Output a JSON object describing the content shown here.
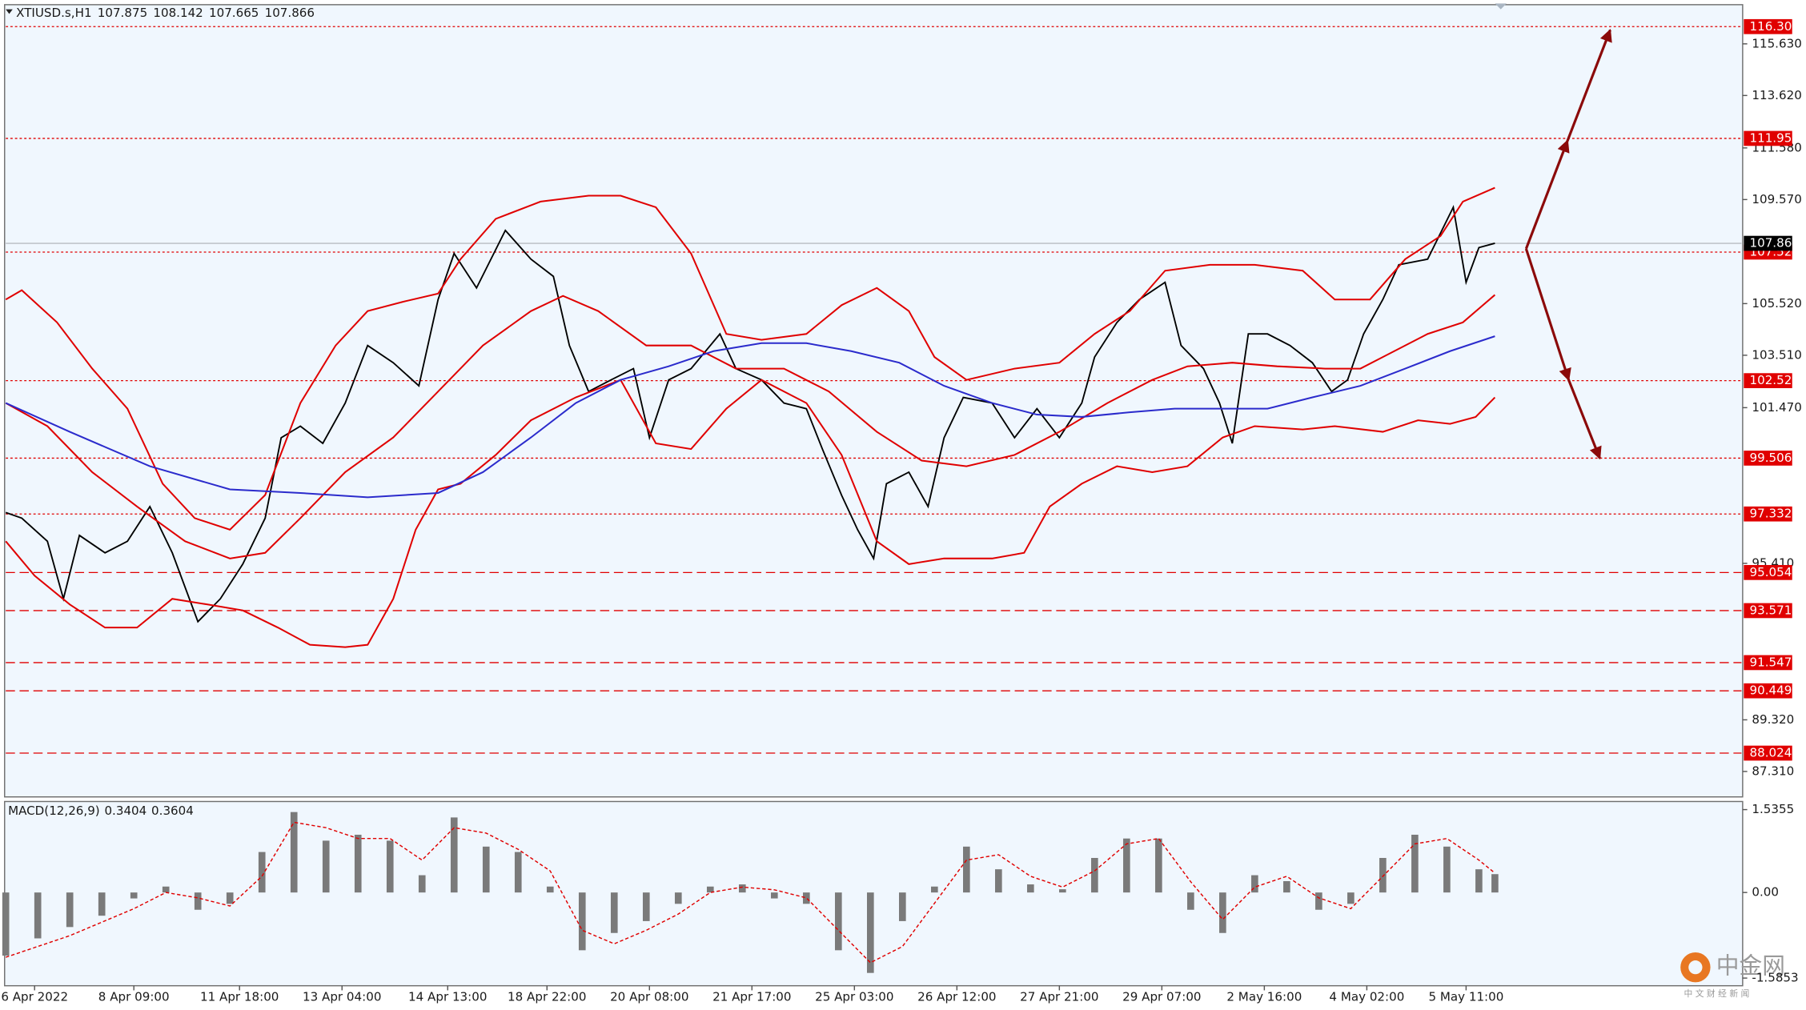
{
  "chart_data": [
    {
      "type": "line",
      "symbol": "XTIUSD.s,H1",
      "ohlc": [
        107.875,
        108.142,
        107.665,
        107.866
      ],
      "xlim": [
        0,
        542
      ],
      "xticks": [
        {
          "value": 9,
          "label": "6 Apr 2022"
        },
        {
          "value": 40,
          "label": "8 Apr 09:00"
        },
        {
          "value": 73,
          "label": "11 Apr 18:00"
        },
        {
          "value": 105,
          "label": "13 Apr 04:00"
        },
        {
          "value": 138,
          "label": "14 Apr 13:00"
        },
        {
          "value": 169,
          "label": "18 Apr 22:00"
        },
        {
          "value": 201,
          "label": "20 Apr 08:00"
        },
        {
          "value": 233,
          "label": "21 Apr 17:00"
        },
        {
          "value": 265,
          "label": "25 Apr 03:00"
        },
        {
          "value": 297,
          "label": "26 Apr 12:00"
        },
        {
          "value": 329,
          "label": "27 Apr 21:00"
        },
        {
          "value": 361,
          "label": "29 Apr 07:00"
        },
        {
          "value": 393,
          "label": "2 May 16:00"
        },
        {
          "value": 425,
          "label": "4 May 02:00"
        },
        {
          "value": 456,
          "label": "5 May 11:00"
        }
      ],
      "ylim": [
        86.32,
        117.11
      ],
      "yticks": [
        {
          "value": 115.63,
          "label": "115.630"
        },
        {
          "value": 113.62,
          "label": "113.620"
        },
        {
          "value": 111.58,
          "label": "111.580"
        },
        {
          "value": 109.57,
          "label": "109.570"
        },
        {
          "value": 105.52,
          "label": "105.520"
        },
        {
          "value": 103.51,
          "label": "103.510"
        },
        {
          "value": 101.47,
          "label": "101.470"
        },
        {
          "value": 95.41,
          "label": "95.410"
        },
        {
          "value": 89.32,
          "label": "89.320"
        },
        {
          "value": 87.31,
          "label": "87.310"
        }
      ],
      "series": [
        {
          "color": "#000000",
          "x": [
            0,
            5,
            13,
            18,
            23,
            31,
            38,
            45,
            52,
            60,
            67,
            74,
            81,
            86,
            92,
            99,
            106,
            113,
            121,
            129,
            135,
            140,
            147,
            156,
            164,
            171,
            176,
            182,
            189,
            196,
            201,
            207,
            214,
            223,
            228,
            236,
            243,
            250,
            255,
            261,
            266,
            271,
            275,
            282,
            288,
            293,
            299,
            308,
            315,
            322,
            329,
            336,
            340,
            347,
            354,
            362,
            367,
            374,
            379,
            383,
            388,
            394,
            401,
            408,
            414,
            419,
            424,
            430,
            435,
            444,
            452,
            456,
            460,
            465
          ],
          "values": [
            97.39,
            97.17,
            96.27,
            94.03,
            96.5,
            95.82,
            96.27,
            97.62,
            95.82,
            93.14,
            94.03,
            95.38,
            97.17,
            100.3,
            100.75,
            100.08,
            101.65,
            103.89,
            103.22,
            102.32,
            105.68,
            107.47,
            106.13,
            108.37,
            107.25,
            106.58,
            103.89,
            102.1,
            102.55,
            102.99,
            100.3,
            102.55,
            102.99,
            104.34,
            102.99,
            102.55,
            101.65,
            101.43,
            99.86,
            98.06,
            96.72,
            95.6,
            98.51,
            98.96,
            97.62,
            100.3,
            101.87,
            101.65,
            100.3,
            101.43,
            100.3,
            101.65,
            103.44,
            104.79,
            105.68,
            106.35,
            103.89,
            102.99,
            101.65,
            100.08,
            104.34,
            104.34,
            103.89,
            103.22,
            102.1,
            102.55,
            104.34,
            105.68,
            107.03,
            107.25,
            109.27,
            106.35,
            107.7,
            107.87
          ]
        },
        {
          "color": "#e00000",
          "x": [
            0,
            5,
            16,
            27,
            38,
            49,
            59,
            70,
            81,
            92,
            103,
            113,
            124,
            135,
            142,
            153,
            167,
            182,
            192,
            203,
            214,
            225,
            236,
            250,
            261,
            272,
            282,
            290,
            300,
            315,
            329,
            340,
            351,
            362,
            376,
            390,
            405,
            415,
            426,
            437,
            448,
            455,
            465
          ],
          "values": [
            105.68,
            106.04,
            104.79,
            102.99,
            101.43,
            98.51,
            97.17,
            96.72,
            98.07,
            101.65,
            103.89,
            105.23,
            105.59,
            105.91,
            107.25,
            108.82,
            109.49,
            109.72,
            109.72,
            109.27,
            107.47,
            104.34,
            104.11,
            104.34,
            105.46,
            106.13,
            105.23,
            103.44,
            102.55,
            102.99,
            103.22,
            104.34,
            105.23,
            106.8,
            107.03,
            107.03,
            106.8,
            105.68,
            105.68,
            107.25,
            108.15,
            109.49,
            110.03
          ]
        },
        {
          "color": "#e00000",
          "x": [
            0,
            13,
            27,
            41,
            56,
            70,
            81,
            92,
            106,
            121,
            135,
            149,
            164,
            174,
            185,
            200,
            214,
            228,
            243,
            257,
            272,
            286,
            300,
            315,
            329,
            344,
            358,
            369,
            383,
            397,
            412,
            423,
            430,
            444,
            455,
            465
          ],
          "values": [
            101.65,
            100.75,
            98.96,
            97.62,
            96.27,
            95.6,
            95.82,
            97.17,
            98.96,
            100.31,
            102.1,
            103.89,
            105.23,
            105.82,
            105.23,
            103.89,
            103.89,
            102.99,
            102.99,
            102.1,
            100.53,
            99.41,
            99.19,
            99.63,
            100.53,
            101.65,
            102.55,
            103.08,
            103.22,
            103.08,
            102.99,
            102.99,
            103.44,
            104.34,
            104.79,
            105.86
          ]
        },
        {
          "color": "#e00000",
          "x": [
            0,
            9,
            20,
            31,
            41,
            52,
            63,
            74,
            85,
            95,
            106,
            113,
            121,
            128,
            135,
            142,
            153,
            164,
            178,
            192,
            203,
            214,
            225,
            236,
            250,
            261,
            272,
            282,
            293,
            308,
            318,
            326,
            336,
            347,
            358,
            369,
            380,
            390,
            405,
            415,
            430,
            441,
            451,
            459,
            465
          ],
          "values": [
            96.27,
            94.93,
            93.81,
            92.91,
            92.91,
            94.03,
            93.81,
            93.58,
            92.91,
            92.24,
            92.15,
            92.24,
            94.03,
            96.72,
            98.29,
            98.51,
            99.63,
            100.98,
            101.87,
            102.55,
            100.08,
            99.86,
            101.43,
            102.55,
            101.65,
            99.63,
            96.27,
            95.38,
            95.6,
            95.6,
            95.82,
            97.62,
            98.51,
            99.19,
            98.96,
            99.19,
            100.31,
            100.75,
            100.62,
            100.75,
            100.53,
            100.98,
            100.84,
            101.11,
            101.87
          ]
        },
        {
          "color": "#2b2bcc",
          "x": [
            0,
            20,
            45,
            70,
            92,
            113,
            135,
            149,
            164,
            178,
            192,
            207,
            221,
            236,
            250,
            264,
            279,
            293,
            308,
            322,
            336,
            351,
            365,
            380,
            394,
            408,
            423,
            437,
            451,
            465
          ],
          "values": [
            101.65,
            100.53,
            99.19,
            98.29,
            98.15,
            97.98,
            98.15,
            98.96,
            100.31,
            101.65,
            102.55,
            103.08,
            103.67,
            103.98,
            103.98,
            103.67,
            103.22,
            102.32,
            101.65,
            101.2,
            101.11,
            101.29,
            101.43,
            101.43,
            101.43,
            101.87,
            102.32,
            102.99,
            103.67,
            104.25
          ]
        }
      ],
      "levels": [
        {
          "value": 116.301,
          "style": "dotted"
        },
        {
          "value": 111.95,
          "label": "111.950",
          "style": "dotted"
        },
        {
          "value": 107.525,
          "style": "dotted"
        },
        {
          "value": 102.521,
          "style": "dotted"
        },
        {
          "value": 99.506,
          "style": "dotted"
        },
        {
          "value": 97.332,
          "style": "dotted"
        },
        {
          "value": 95.054,
          "style": "dashed"
        },
        {
          "value": 93.571,
          "style": "dashed"
        },
        {
          "value": 91.547,
          "style": "dashed"
        },
        {
          "value": 90.449,
          "style": "dashed"
        },
        {
          "value": 88.024,
          "style": "dashed"
        }
      ],
      "level_color": "#e00000",
      "last_price": 107.866,
      "last_price_color": "#000000"
    },
    {
      "type": "macd",
      "title": "MACD(12,26,9)",
      "header_values": [
        0.3404,
        0.3604
      ],
      "xlim": [
        0,
        542
      ],
      "ylim": [
        -1.706,
        1.664
      ],
      "yticks": [
        1.5355,
        {
          "value": 0,
          "label": "0.00"
        },
        -1.5853
      ],
      "x": [
        0,
        10,
        20,
        30,
        40,
        50,
        60,
        70,
        80,
        90,
        100,
        110,
        120,
        130,
        140,
        150,
        160,
        170,
        180,
        190,
        200,
        210,
        220,
        230,
        240,
        250,
        260,
        270,
        280,
        290,
        300,
        310,
        320,
        330,
        340,
        350,
        360,
        370,
        380,
        390,
        400,
        410,
        420,
        430,
        440,
        450,
        460,
        465
      ],
      "values": [
        -1.17,
        -0.85,
        -0.64,
        -0.43,
        -0.11,
        0.11,
        -0.32,
        -0.21,
        0.75,
        1.49,
        0.96,
        1.07,
        0.96,
        0.32,
        1.39,
        0.85,
        0.75,
        0.11,
        -1.07,
        -0.75,
        -0.53,
        -0.21,
        0.11,
        0.15,
        -0.11,
        -0.21,
        -1.07,
        -1.49,
        -0.53,
        0.11,
        0.85,
        0.43,
        0.15,
        0.06,
        0.64,
        1.0,
        1.0,
        -0.32,
        -0.75,
        0.32,
        0.21,
        -0.32,
        -0.21,
        0.64,
        1.07,
        0.85,
        0.43,
        0.34
      ],
      "color": "#7a7a7a",
      "signal": {
        "color": "#e00000",
        "values": [
          -1.2,
          -1.0,
          -0.8,
          -0.55,
          -0.3,
          0.0,
          -0.1,
          -0.25,
          0.3,
          1.3,
          1.2,
          1.0,
          1.0,
          0.6,
          1.2,
          1.1,
          0.8,
          0.4,
          -0.7,
          -0.95,
          -0.7,
          -0.4,
          0.0,
          0.1,
          0.05,
          -0.1,
          -0.7,
          -1.3,
          -1.0,
          -0.2,
          0.6,
          0.7,
          0.3,
          0.1,
          0.4,
          0.9,
          1.0,
          0.2,
          -0.5,
          0.1,
          0.3,
          -0.1,
          -0.3,
          0.3,
          0.9,
          1.0,
          0.6,
          0.36
        ]
      }
    }
  ],
  "watermark": {
    "name": "中金网",
    "tagline": "中 文 财 经 新 闻"
  }
}
